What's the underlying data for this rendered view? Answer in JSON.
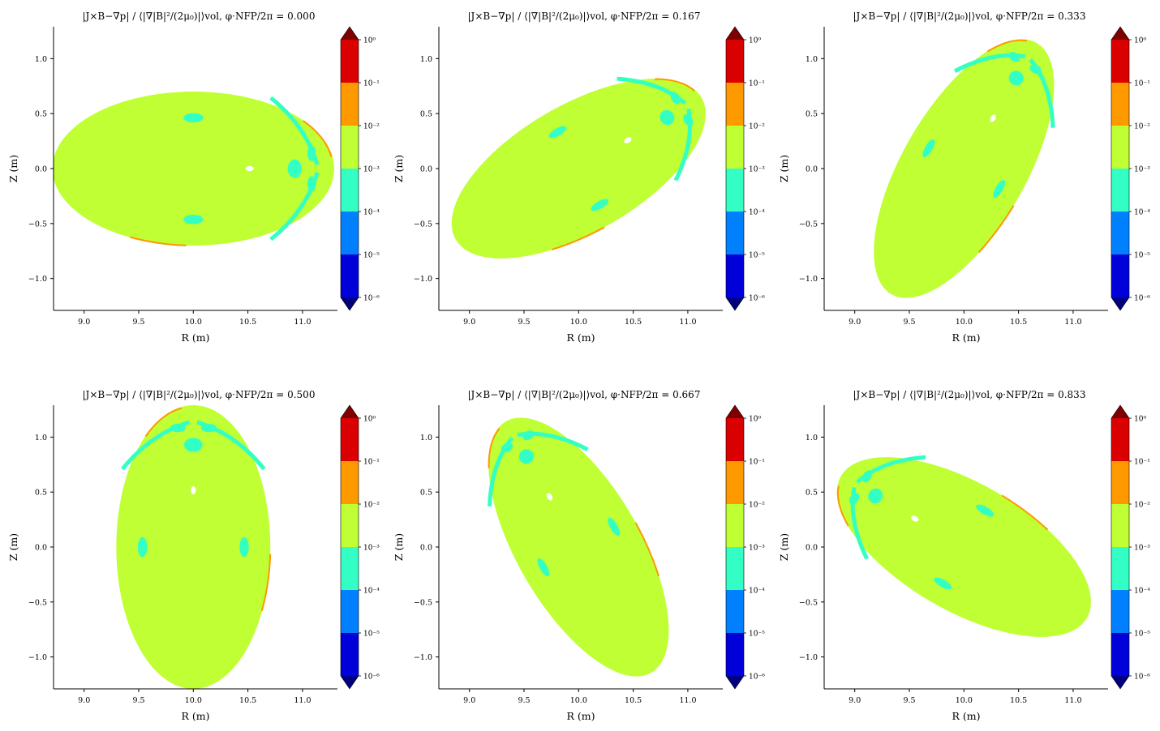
{
  "figure": {
    "colors": {
      "band": [
        "#0000d8",
        "#0080ff",
        "#33ffc4",
        "#bfff33",
        "#ff9900",
        "#db0000"
      ],
      "under": "#00007f",
      "over": "#7f0000"
    }
  },
  "chart_data": [
    {
      "type": "contour",
      "title": "|J×B−∇p| / ⟨|∇|B|²/(2μ₀)|⟩vol, φ·NFP/2π = 0.000",
      "phi_label": "0.000",
      "xlabel": "R (m)",
      "ylabel": "Z (m)",
      "xlim": [
        8.72,
        11.32
      ],
      "ylim": [
        -1.29,
        1.29
      ],
      "xticks": [
        "9.0",
        "9.5",
        "10.0",
        "10.5",
        "11.0"
      ],
      "yticks": [
        "−1.0",
        "−0.5",
        "0.0",
        "0.5",
        "1.0"
      ],
      "colorbar_levels": [
        "10⁰",
        "10⁻¹",
        "10⁻²",
        "10⁻³",
        "10⁻⁴",
        "10⁻⁵",
        "10⁻⁶"
      ],
      "boundary": {
        "center_R": 10.0,
        "center_Z": 0.0,
        "semi_a": 1.29,
        "semi_b": 0.7,
        "tilt_deg": 0
      },
      "dominant_band": "10⁻³–10⁻²"
    },
    {
      "type": "contour",
      "title": "|J×B−∇p| / ⟨|∇|B|²/(2μ₀)|⟩vol, φ·NFP/2π = 0.167",
      "phi_label": "0.167",
      "xlabel": "R (m)",
      "ylabel": "Z (m)",
      "xlim": [
        8.72,
        11.32
      ],
      "ylim": [
        -1.29,
        1.29
      ],
      "xticks": [
        "9.0",
        "9.5",
        "10.0",
        "10.5",
        "11.0"
      ],
      "yticks": [
        "−1.0",
        "−0.5",
        "0.0",
        "0.5",
        "1.0"
      ],
      "colorbar_levels": [
        "10⁰",
        "10⁻¹",
        "10⁻²",
        "10⁻³",
        "10⁻⁴",
        "10⁻⁵",
        "10⁻⁶"
      ],
      "boundary": {
        "center_R": 10.0,
        "center_Z": 0.0,
        "semi_a": 1.3,
        "semi_b": 0.58,
        "tilt_deg": 30
      },
      "dominant_band": "10⁻³–10⁻²"
    },
    {
      "type": "contour",
      "title": "|J×B−∇p| / ⟨|∇|B|²/(2μ₀)|⟩vol, φ·NFP/2π = 0.333",
      "phi_label": "0.333",
      "xlabel": "R (m)",
      "ylabel": "Z (m)",
      "xlim": [
        8.72,
        11.32
      ],
      "ylim": [
        -1.29,
        1.29
      ],
      "xticks": [
        "9.0",
        "9.5",
        "10.0",
        "10.5",
        "11.0"
      ],
      "yticks": [
        "−1.0",
        "−0.5",
        "0.0",
        "0.5",
        "1.0"
      ],
      "colorbar_levels": [
        "10⁰",
        "10⁻¹",
        "10⁻²",
        "10⁻³",
        "10⁻⁴",
        "10⁻⁵",
        "10⁻⁶"
      ],
      "boundary": {
        "center_R": 10.0,
        "center_Z": 0.0,
        "semi_a": 1.33,
        "semi_b": 0.56,
        "tilt_deg": 60
      },
      "dominant_band": "10⁻³–10⁻²"
    },
    {
      "type": "contour",
      "title": "|J×B−∇p| / ⟨|∇|B|²/(2μ₀)|⟩vol, φ·NFP/2π = 0.500",
      "phi_label": "0.500",
      "xlabel": "R (m)",
      "ylabel": "Z (m)",
      "xlim": [
        8.72,
        11.32
      ],
      "ylim": [
        -1.29,
        1.29
      ],
      "xticks": [
        "9.0",
        "9.5",
        "10.0",
        "10.5",
        "11.0"
      ],
      "yticks": [
        "−1.0",
        "−0.5",
        "0.0",
        "0.5",
        "1.0"
      ],
      "colorbar_levels": [
        "10⁰",
        "10⁻¹",
        "10⁻²",
        "10⁻³",
        "10⁻⁴",
        "10⁻⁵",
        "10⁻⁶"
      ],
      "boundary": {
        "center_R": 10.0,
        "center_Z": 0.0,
        "semi_a": 1.3,
        "semi_b": 0.7,
        "tilt_deg": 90
      },
      "dominant_band": "10⁻³–10⁻²"
    },
    {
      "type": "contour",
      "title": "|J×B−∇p| / ⟨|∇|B|²/(2μ₀)|⟩vol, φ·NFP/2π = 0.667",
      "phi_label": "0.667",
      "xlabel": "R (m)",
      "ylabel": "Z (m)",
      "xlim": [
        8.72,
        11.32
      ],
      "ylim": [
        -1.29,
        1.29
      ],
      "xticks": [
        "9.0",
        "9.5",
        "10.0",
        "10.5",
        "11.0"
      ],
      "yticks": [
        "−1.0",
        "−0.5",
        "0.0",
        "0.5",
        "1.0"
      ],
      "colorbar_levels": [
        "10⁰",
        "10⁻¹",
        "10⁻²",
        "10⁻³",
        "10⁻⁴",
        "10⁻⁵",
        "10⁻⁶"
      ],
      "boundary": {
        "center_R": 10.0,
        "center_Z": 0.0,
        "semi_a": 1.33,
        "semi_b": 0.56,
        "tilt_deg": 120
      },
      "dominant_band": "10⁻³–10⁻²"
    },
    {
      "type": "contour",
      "title": "|J×B−∇p| / ⟨|∇|B|²/(2μ₀)|⟩vol, φ·NFP/2π = 0.833",
      "phi_label": "0.833",
      "xlabel": "R (m)",
      "ylabel": "Z (m)",
      "xlim": [
        8.72,
        11.32
      ],
      "ylim": [
        -1.29,
        1.29
      ],
      "xticks": [
        "9.0",
        "9.5",
        "10.0",
        "10.5",
        "11.0"
      ],
      "yticks": [
        "−1.0",
        "−0.5",
        "0.0",
        "0.5",
        "1.0"
      ],
      "colorbar_levels": [
        "10⁰",
        "10⁻¹",
        "10⁻²",
        "10⁻³",
        "10⁻⁴",
        "10⁻⁵",
        "10⁻⁶"
      ],
      "boundary": {
        "center_R": 10.0,
        "center_Z": 0.0,
        "semi_a": 1.3,
        "semi_b": 0.58,
        "tilt_deg": 150
      },
      "dominant_band": "10⁻³–10⁻²"
    }
  ]
}
